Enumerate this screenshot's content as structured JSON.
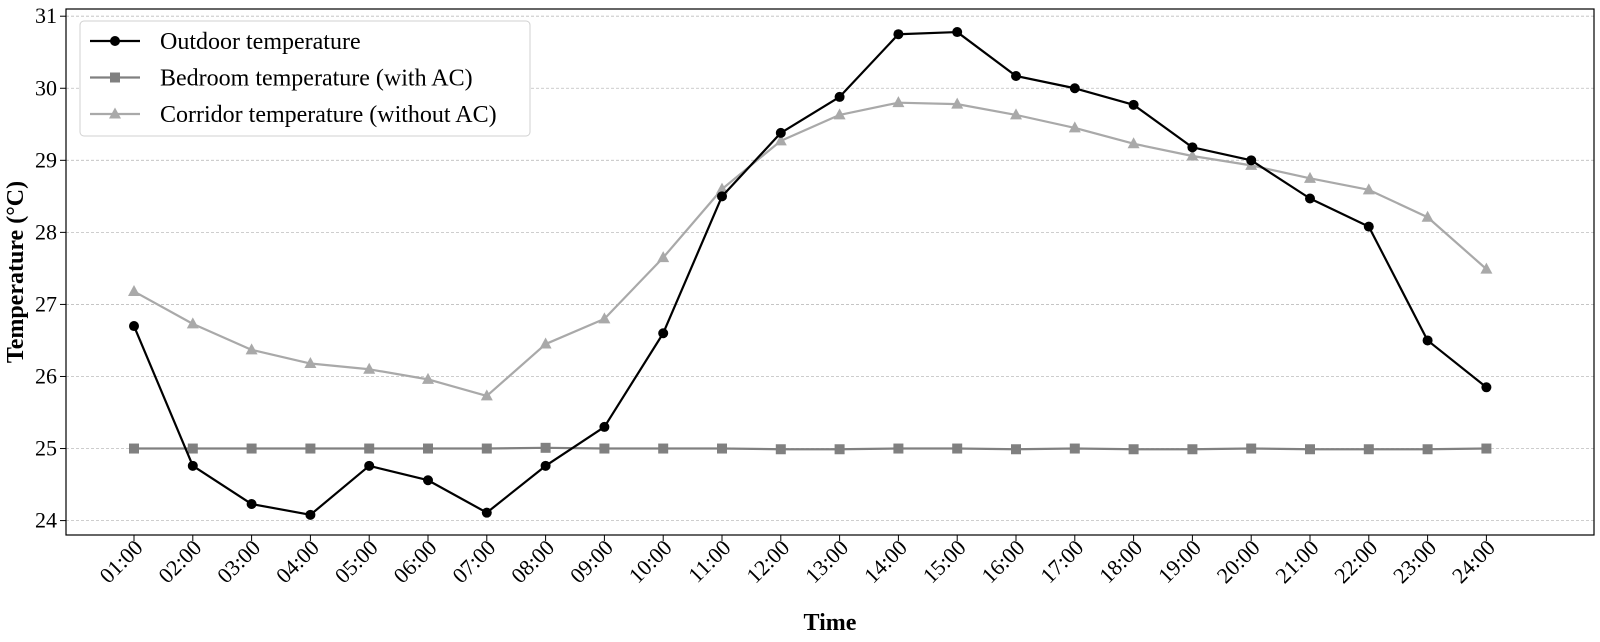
{
  "chart_data": {
    "type": "line",
    "title": "",
    "xlabel": "Time",
    "ylabel": "Temperature (°C)",
    "ylim": [
      23.8,
      31.1
    ],
    "yticks": [
      24,
      25,
      26,
      27,
      28,
      29,
      30,
      31
    ],
    "grid": "horizontal dashed",
    "legend_position": "top-left",
    "categories": [
      "01:00",
      "02:00",
      "03:00",
      "04:00",
      "05:00",
      "06:00",
      "07:00",
      "08:00",
      "09:00",
      "10:00",
      "11:00",
      "12:00",
      "13:00",
      "14:00",
      "15:00",
      "16:00",
      "17:00",
      "18:00",
      "19:00",
      "20:00",
      "21:00",
      "22:00",
      "23:00",
      "24:00"
    ],
    "series": [
      {
        "name": "Outdoor temperature",
        "color": "#000000",
        "marker": "circle",
        "values": [
          26.7,
          24.76,
          24.23,
          24.08,
          24.76,
          24.56,
          24.11,
          24.76,
          25.3,
          26.6,
          28.5,
          29.38,
          29.88,
          30.75,
          30.78,
          30.17,
          30.0,
          29.77,
          29.18,
          29.0,
          28.47,
          28.08,
          26.5,
          25.85
        ]
      },
      {
        "name": "Bedroom temperature (with AC)",
        "color": "#808080",
        "marker": "square",
        "values": [
          25.0,
          25.0,
          25.0,
          25.0,
          25.0,
          25.0,
          25.0,
          25.01,
          25.0,
          25.0,
          25.0,
          24.99,
          24.99,
          25.0,
          25.0,
          24.99,
          25.0,
          24.99,
          24.99,
          25.0,
          24.99,
          24.99,
          24.99,
          25.0
        ]
      },
      {
        "name": "Corridor temperature (without AC)",
        "color": "#a9a9a9",
        "marker": "triangle",
        "values": [
          27.18,
          26.73,
          26.37,
          26.18,
          26.1,
          25.96,
          25.73,
          26.45,
          26.8,
          27.65,
          28.6,
          29.27,
          29.63,
          29.8,
          29.78,
          29.63,
          29.45,
          29.23,
          29.06,
          28.93,
          28.75,
          28.59,
          28.21,
          27.49
        ]
      }
    ]
  }
}
